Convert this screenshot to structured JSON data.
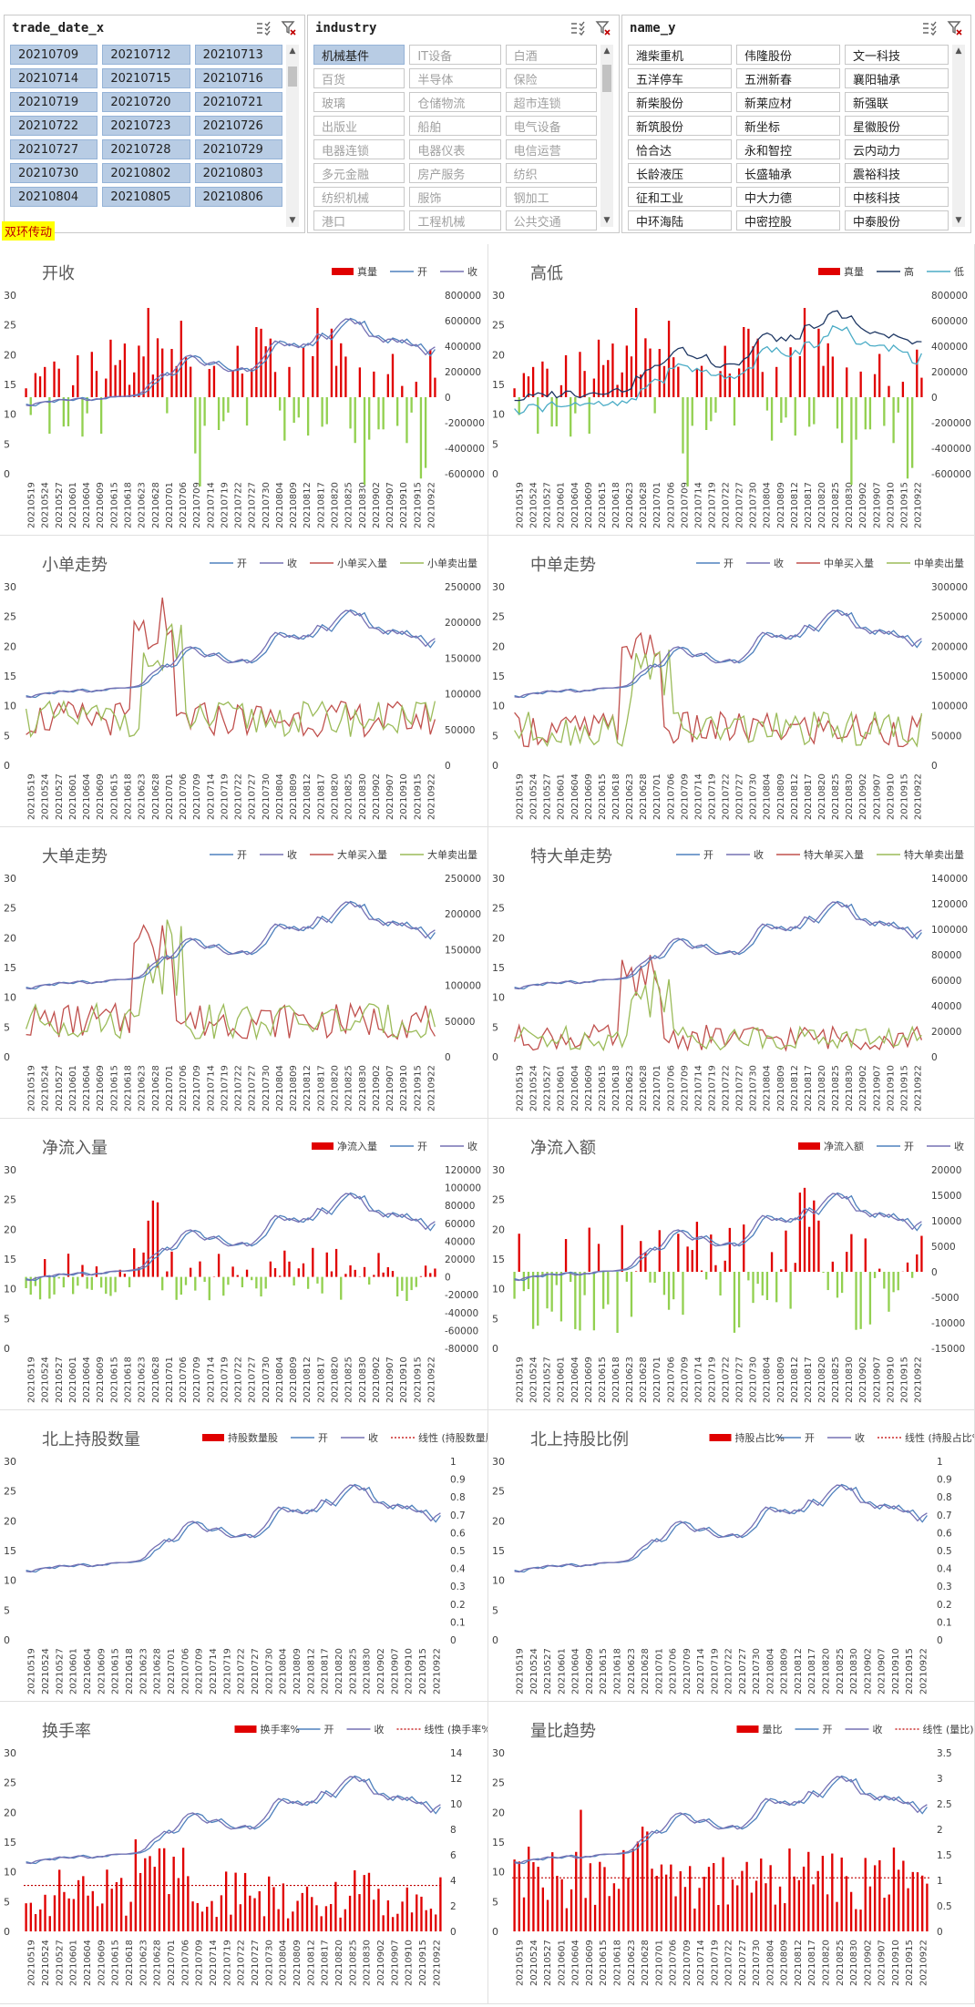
{
  "slicers": [
    {
      "title": "trade_date_x",
      "items": [
        {
          "label": "20210709",
          "selected": true
        },
        {
          "label": "20210712",
          "selected": true
        },
        {
          "label": "20210713",
          "selected": true
        },
        {
          "label": "20210714",
          "selected": true
        },
        {
          "label": "20210715",
          "selected": true
        },
        {
          "label": "20210716",
          "selected": true
        },
        {
          "label": "20210719",
          "selected": true
        },
        {
          "label": "20210720",
          "selected": true
        },
        {
          "label": "20210721",
          "selected": true
        },
        {
          "label": "20210722",
          "selected": true
        },
        {
          "label": "20210723",
          "selected": true
        },
        {
          "label": "20210726",
          "selected": true
        },
        {
          "label": "20210727",
          "selected": true
        },
        {
          "label": "20210728",
          "selected": true
        },
        {
          "label": "20210729",
          "selected": true
        },
        {
          "label": "20210730",
          "selected": true
        },
        {
          "label": "20210802",
          "selected": true
        },
        {
          "label": "20210803",
          "selected": true
        },
        {
          "label": "20210804",
          "selected": true
        },
        {
          "label": "20210805",
          "selected": true
        },
        {
          "label": "20210806",
          "selected": true
        }
      ]
    },
    {
      "title": "industry",
      "items": [
        {
          "label": "机械基件",
          "selected": true
        },
        {
          "label": "IT设备",
          "dim": true
        },
        {
          "label": "白酒",
          "dim": true
        },
        {
          "label": "百货",
          "dim": true
        },
        {
          "label": "半导体",
          "dim": true
        },
        {
          "label": "保险",
          "dim": true
        },
        {
          "label": "玻璃",
          "dim": true
        },
        {
          "label": "仓储物流",
          "dim": true
        },
        {
          "label": "超市连锁",
          "dim": true
        },
        {
          "label": "出版业",
          "dim": true
        },
        {
          "label": "船舶",
          "dim": true
        },
        {
          "label": "电气设备",
          "dim": true
        },
        {
          "label": "电器连锁",
          "dim": true
        },
        {
          "label": "电器仪表",
          "dim": true
        },
        {
          "label": "电信运营",
          "dim": true
        },
        {
          "label": "多元金融",
          "dim": true
        },
        {
          "label": "房产服务",
          "dim": true
        },
        {
          "label": "纺织",
          "dim": true
        },
        {
          "label": "纺织机械",
          "dim": true
        },
        {
          "label": "服饰",
          "dim": true
        },
        {
          "label": "钢加工",
          "dim": true
        },
        {
          "label": "港口",
          "dim": true
        },
        {
          "label": "工程机械",
          "dim": true
        },
        {
          "label": "公共交通",
          "dim": true
        }
      ]
    },
    {
      "title": "name_y",
      "items": [
        {
          "label": "潍柴重机"
        },
        {
          "label": "伟隆股份"
        },
        {
          "label": "文一科技"
        },
        {
          "label": "五洋停车"
        },
        {
          "label": "五洲新春"
        },
        {
          "label": "襄阳轴承"
        },
        {
          "label": "新柴股份"
        },
        {
          "label": "新莱应材"
        },
        {
          "label": "新强联"
        },
        {
          "label": "新筑股份"
        },
        {
          "label": "新坐标"
        },
        {
          "label": "星徽股份"
        },
        {
          "label": "恰合达"
        },
        {
          "label": "永和智控"
        },
        {
          "label": "云内动力"
        },
        {
          "label": "长龄液压"
        },
        {
          "label": "长盛轴承"
        },
        {
          "label": "震裕科技"
        },
        {
          "label": "征和工业"
        },
        {
          "label": "中大力德"
        },
        {
          "label": "中核科技"
        },
        {
          "label": "中环海陆"
        },
        {
          "label": "中密控股"
        },
        {
          "label": "中泰股份"
        }
      ]
    }
  ],
  "flag": "双环传动",
  "colors": {
    "open": "#4f81bd",
    "close": "#7570b3",
    "bar_pos": "#e00000",
    "bar_neg": "#92d050",
    "buy": "#c0504d",
    "sell": "#9bbb59",
    "high": "#1f3864",
    "low": "#4bacc6",
    "trend": "#c00000"
  },
  "x_ticks": [
    "20210519",
    "20210524",
    "20210527",
    "20210601",
    "20210604",
    "20210609",
    "20210615",
    "20210618",
    "20210623",
    "20210628",
    "20210701",
    "20210706",
    "20210709",
    "20210714",
    "20210719",
    "20210722",
    "20210727",
    "20210730",
    "20210804",
    "20210809",
    "20210812",
    "20210817",
    "20210820",
    "20210825",
    "20210830",
    "20210902",
    "20210907",
    "20210910",
    "20210915",
    "20210922"
  ],
  "price_axis": {
    "ticks": [
      "30",
      "25",
      "20",
      "15",
      "10",
      "5",
      "0"
    ],
    "min": 0,
    "max": 30
  },
  "charts": [
    {
      "title": "开收",
      "legend": [
        {
          "label": "真量",
          "type": "bar"
        },
        {
          "label": "开",
          "type": "line",
          "color": "#4f81bd"
        },
        {
          "label": "收",
          "type": "line",
          "color": "#7570b3"
        }
      ],
      "right": {
        "ticks": [
          "800000",
          "600000",
          "400000",
          "200000",
          "0",
          "-200000",
          "-400000",
          "-600000"
        ],
        "min": -600000,
        "max": 800000
      },
      "bars": "vol"
    },
    {
      "title": "高低",
      "legend": [
        {
          "label": "真量",
          "type": "bar"
        },
        {
          "label": "高",
          "type": "line",
          "color": "#1f3864"
        },
        {
          "label": "低",
          "type": "line",
          "color": "#4bacc6"
        }
      ],
      "right": {
        "ticks": [
          "800000",
          "600000",
          "400000",
          "200000",
          "0",
          "-200000",
          "-400000",
          "-600000"
        ],
        "min": -600000,
        "max": 800000
      },
      "bars": "vol",
      "highlow": true
    },
    {
      "title": "小单走势",
      "legend": [
        {
          "label": "开",
          "type": "line",
          "color": "#4f81bd"
        },
        {
          "label": "收",
          "type": "line",
          "color": "#7570b3"
        },
        {
          "label": "小单买入量",
          "type": "line",
          "color": "#c0504d"
        },
        {
          "label": "小单卖出量",
          "type": "line",
          "color": "#9bbb59"
        }
      ],
      "right": {
        "ticks": [
          "250000",
          "200000",
          "150000",
          "100000",
          "50000",
          "0"
        ],
        "min": 0,
        "max": 250000
      },
      "flow": "sm"
    },
    {
      "title": "中单走势",
      "legend": [
        {
          "label": "开",
          "type": "line",
          "color": "#4f81bd"
        },
        {
          "label": "收",
          "type": "line",
          "color": "#7570b3"
        },
        {
          "label": "中单买入量",
          "type": "line",
          "color": "#c0504d"
        },
        {
          "label": "中单卖出量",
          "type": "line",
          "color": "#9bbb59"
        }
      ],
      "right": {
        "ticks": [
          "300000",
          "250000",
          "200000",
          "150000",
          "100000",
          "50000",
          "0"
        ],
        "min": 0,
        "max": 300000
      },
      "flow": "md"
    },
    {
      "title": "大单走势",
      "legend": [
        {
          "label": "开",
          "type": "line",
          "color": "#4f81bd"
        },
        {
          "label": "收",
          "type": "line",
          "color": "#7570b3"
        },
        {
          "label": "大单买入量",
          "type": "line",
          "color": "#c0504d"
        },
        {
          "label": "大单卖出量",
          "type": "line",
          "color": "#9bbb59"
        }
      ],
      "right": {
        "ticks": [
          "250000",
          "200000",
          "150000",
          "100000",
          "50000",
          "0"
        ],
        "min": 0,
        "max": 250000
      },
      "flow": "lg"
    },
    {
      "title": "特大单走势",
      "legend": [
        {
          "label": "开",
          "type": "line",
          "color": "#4f81bd"
        },
        {
          "label": "收",
          "type": "line",
          "color": "#7570b3"
        },
        {
          "label": "特大单买入量",
          "type": "line",
          "color": "#c0504d"
        },
        {
          "label": "特大单卖出量",
          "type": "line",
          "color": "#9bbb59"
        }
      ],
      "right": {
        "ticks": [
          "140000",
          "120000",
          "100000",
          "80000",
          "60000",
          "40000",
          "20000",
          "0"
        ],
        "min": 0,
        "max": 140000
      },
      "flow": "xl"
    },
    {
      "title": "净流入量",
      "legend": [
        {
          "label": "净流入量",
          "type": "bar"
        },
        {
          "label": "开",
          "type": "line",
          "color": "#4f81bd"
        },
        {
          "label": "收",
          "type": "line",
          "color": "#7570b3"
        }
      ],
      "right": {
        "ticks": [
          "120000",
          "100000",
          "80000",
          "60000",
          "40000",
          "20000",
          "0",
          "-20000",
          "-40000",
          "-60000",
          "-80000"
        ],
        "min": -80000,
        "max": 120000
      },
      "bars": "netvol"
    },
    {
      "title": "净流入额",
      "legend": [
        {
          "label": "净流入额",
          "type": "bar"
        },
        {
          "label": "开",
          "type": "line",
          "color": "#4f81bd"
        },
        {
          "label": "收",
          "type": "line",
          "color": "#7570b3"
        }
      ],
      "right": {
        "ticks": [
          "20000",
          "15000",
          "10000",
          "5000",
          "0",
          "-5000",
          "-10000",
          "-15000"
        ],
        "min": -15000,
        "max": 20000
      },
      "bars": "netamt"
    },
    {
      "title": "北上持股数量",
      "legend": [
        {
          "label": "持股数量股",
          "type": "bar"
        },
        {
          "label": "开",
          "type": "line",
          "color": "#4f81bd"
        },
        {
          "label": "收",
          "type": "line",
          "color": "#7570b3"
        },
        {
          "label": "线性 (持股数量股)",
          "type": "dot"
        }
      ],
      "right": {
        "ticks": [
          "1",
          "0.9",
          "0.8",
          "0.7",
          "0.6",
          "0.5",
          "0.4",
          "0.3",
          "0.2",
          "0.1",
          "0"
        ],
        "min": 0,
        "max": 1
      },
      "bars": "none"
    },
    {
      "title": "北上持股比例",
      "legend": [
        {
          "label": "持股占比%",
          "type": "bar"
        },
        {
          "label": "开",
          "type": "line",
          "color": "#4f81bd"
        },
        {
          "label": "收",
          "type": "line",
          "color": "#7570b3"
        },
        {
          "label": "线性 (持股占比%)",
          "type": "dot"
        }
      ],
      "right": {
        "ticks": [
          "1",
          "0.9",
          "0.8",
          "0.7",
          "0.6",
          "0.5",
          "0.4",
          "0.3",
          "0.2",
          "0.1",
          "0"
        ],
        "min": 0,
        "max": 1
      },
      "bars": "none"
    },
    {
      "title": "换手率",
      "legend": [
        {
          "label": "换手率%",
          "type": "bar"
        },
        {
          "label": "开",
          "type": "line",
          "color": "#4f81bd"
        },
        {
          "label": "收",
          "type": "line",
          "color": "#7570b3"
        },
        {
          "label": "线性 (换手率%)",
          "type": "dot"
        }
      ],
      "right": {
        "ticks": [
          "14",
          "12",
          "10",
          "8",
          "6",
          "4",
          "2",
          "0"
        ],
        "min": 0,
        "max": 14
      },
      "bars": "turnover",
      "trend": 3.6
    },
    {
      "title": "量比趋势",
      "legend": [
        {
          "label": "量比",
          "type": "bar"
        },
        {
          "label": "开",
          "type": "line",
          "color": "#4f81bd"
        },
        {
          "label": "收",
          "type": "line",
          "color": "#7570b3"
        },
        {
          "label": "线性 (量比)",
          "type": "dot"
        }
      ],
      "right": {
        "ticks": [
          "3.5",
          "3",
          "2.5",
          "2",
          "1.5",
          "1",
          "0.5",
          "0"
        ],
        "min": 0,
        "max": 3.5
      },
      "bars": "volratio",
      "trend": 1.05
    }
  ],
  "chart_data": {
    "type": "line",
    "dates": [
      "20210519",
      "20210520",
      "20210521",
      "20210524",
      "20210525",
      "20210526",
      "20210527",
      "20210528",
      "20210531",
      "20210601",
      "20210602",
      "20210603",
      "20210604",
      "20210607",
      "20210608",
      "20210609",
      "20210610",
      "20210611",
      "20210615",
      "20210616",
      "20210617",
      "20210618",
      "20210621",
      "20210622",
      "20210623",
      "20210624",
      "20210625",
      "20210628",
      "20210629",
      "20210630",
      "20210701",
      "20210702",
      "20210705",
      "20210706",
      "20210707",
      "20210708",
      "20210709",
      "20210712",
      "20210713",
      "20210714",
      "20210715",
      "20210716",
      "20210719",
      "20210720",
      "20210721",
      "20210722",
      "20210723",
      "20210726",
      "20210727",
      "20210728",
      "20210729",
      "20210730",
      "20210802",
      "20210803",
      "20210804",
      "20210805",
      "20210806",
      "20210809",
      "20210810",
      "20210811",
      "20210812",
      "20210813",
      "20210816",
      "20210817",
      "20210818",
      "20210819",
      "20210820",
      "20210823",
      "20210824",
      "20210825",
      "20210826",
      "20210827",
      "20210830",
      "20210831",
      "20210901",
      "20210902",
      "20210903",
      "20210906",
      "20210907",
      "20210908",
      "20210909",
      "20210910",
      "20210913",
      "20210914",
      "20210915",
      "20210916",
      "20210917",
      "20210922"
    ],
    "series": [
      {
        "name": "开",
        "values": [
          11.7,
          11.5,
          11.4,
          11.9,
          12.1,
          12.2,
          12.0,
          12.4,
          12.5,
          12.4,
          12.3,
          12.6,
          12.8,
          12.6,
          12.3,
          12.5,
          12.6,
          12.6,
          12.9,
          12.9,
          13.0,
          13.0,
          13.0,
          13.1,
          13.2,
          13.5,
          14.0,
          15.0,
          15.4,
          16.3,
          17.0,
          16.5,
          16.8,
          18.0,
          19.1,
          19.6,
          19.8,
          19.5,
          18.6,
          18.3,
          18.5,
          18.9,
          18.2,
          17.6,
          17.3,
          17.4,
          17.6,
          17.7,
          17.2,
          17.6,
          18.3,
          19.0,
          20.3,
          21.6,
          22.3,
          22.1,
          21.5,
          21.9,
          21.4,
          21.2,
          21.9,
          21.5,
          22.4,
          23.6,
          23.1,
          22.5,
          23.6,
          24.6,
          25.4,
          26.1,
          25.8,
          25.1,
          25.6,
          24.0,
          23.0,
          23.2,
          22.6,
          22.0,
          22.8,
          22.5,
          22.0,
          22.6,
          21.8,
          21.4,
          21.8,
          20.8,
          19.8,
          20.9
        ]
      },
      {
        "name": "收",
        "values": [
          11.5,
          11.4,
          11.8,
          12.0,
          12.1,
          12.0,
          12.3,
          12.5,
          12.4,
          12.3,
          12.5,
          12.7,
          12.6,
          12.3,
          12.4,
          12.6,
          12.5,
          12.8,
          12.9,
          13.0,
          13.0,
          13.0,
          13.1,
          13.2,
          13.4,
          13.9,
          14.9,
          15.6,
          16.1,
          16.8,
          16.5,
          16.9,
          17.8,
          19.0,
          19.7,
          19.9,
          19.5,
          18.7,
          18.2,
          18.6,
          18.8,
          18.3,
          17.6,
          17.2,
          17.3,
          17.6,
          17.8,
          17.2,
          17.5,
          18.2,
          19.0,
          20.1,
          21.5,
          22.3,
          22.0,
          21.5,
          21.8,
          21.5,
          21.2,
          21.8,
          21.6,
          22.3,
          23.5,
          23.2,
          22.6,
          23.5,
          24.5,
          25.4,
          26.0,
          25.9,
          25.2,
          25.5,
          24.2,
          23.1,
          23.1,
          22.8,
          22.1,
          22.6,
          22.6,
          22.1,
          22.5,
          21.9,
          21.5,
          21.7,
          20.9,
          20.0,
          20.8,
          21.3
        ]
      }
    ],
    "ylim": [
      0,
      30
    ]
  }
}
